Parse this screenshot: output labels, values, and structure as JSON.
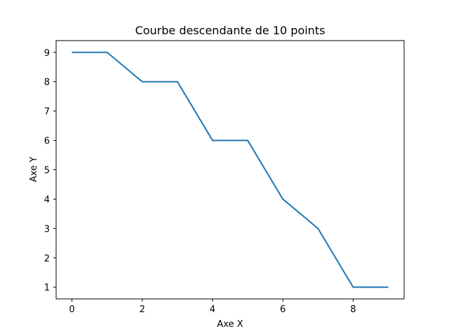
{
  "chart_data": {
    "type": "line",
    "title": "Courbe descendante de 10 points",
    "xlabel": "Axe X",
    "ylabel": "Axe Y",
    "x": [
      0,
      1,
      2,
      3,
      4,
      5,
      6,
      7,
      8,
      9
    ],
    "series": [
      {
        "values": [
          9,
          9,
          8,
          8,
          6,
          6,
          4,
          3,
          1,
          1
        ],
        "color": "#1f77b4"
      }
    ],
    "xlim": [
      -0.45,
      9.45
    ],
    "ylim": [
      0.6,
      9.4
    ],
    "xticks": [
      0,
      2,
      4,
      6,
      8
    ],
    "yticks": [
      1,
      2,
      3,
      4,
      5,
      6,
      7,
      8,
      9
    ],
    "grid": false,
    "legend": "none"
  }
}
